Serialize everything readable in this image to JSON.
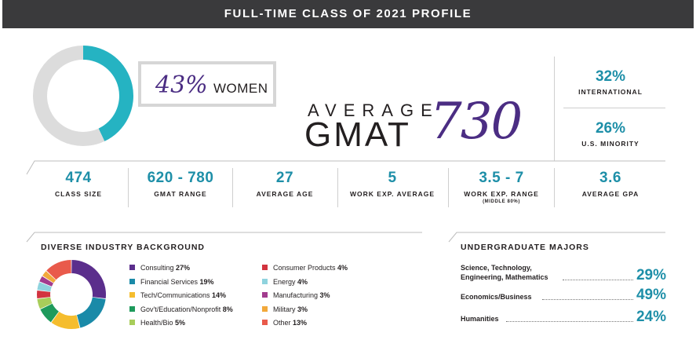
{
  "banner": {
    "title": "FULL-TIME CLASS OF 2021 PROFILE"
  },
  "women": {
    "percent": "43%",
    "label": "WOMEN",
    "value": 43,
    "color_fill": "#25b3c2",
    "color_rest": "#dcdcdc"
  },
  "gmat": {
    "label_top": "AVERAGE",
    "label_main": "GMAT",
    "value": "730"
  },
  "right_stats": [
    {
      "value": "32%",
      "label": "INTERNATIONAL"
    },
    {
      "value": "26%",
      "label": "U.S. MINORITY"
    }
  ],
  "stats": [
    {
      "value": "474",
      "label": "CLASS SIZE",
      "sub": ""
    },
    {
      "value": "620 - 780",
      "label": "GMAT RANGE",
      "sub": ""
    },
    {
      "value": "27",
      "label": "AVERAGE AGE",
      "sub": ""
    },
    {
      "value": "5",
      "label": "WORK EXP. AVERAGE",
      "sub": ""
    },
    {
      "value": "3.5 - 7",
      "label": "WORK EXP. RANGE",
      "sub": "(MIDDLE 80%)"
    },
    {
      "value": "3.6",
      "label": "AVERAGE GPA",
      "sub": ""
    }
  ],
  "industry": {
    "title": "DIVERSE INDUSTRY BACKGROUND"
  },
  "majors": {
    "title": "UNDERGRADUATE MAJORS",
    "items": [
      {
        "name_line1": "Science, Technology,",
        "name_line2": "Engineering, Mathematics",
        "percent": "29%"
      },
      {
        "name_line1": "",
        "name_line2": "Economics/Business",
        "percent": "49%"
      },
      {
        "name_line1": "",
        "name_line2": "Humanities",
        "percent": "24%"
      }
    ]
  },
  "chart_data": [
    {
      "type": "pie",
      "categories": [
        "WOMEN",
        ""
      ],
      "values": [
        43,
        57
      ],
      "colors": [
        "#25b3c2",
        "#dcdcdc"
      ],
      "title": ""
    },
    {
      "type": "pie",
      "title": "DIVERSE INDUSTRY BACKGROUND",
      "legend_placement": "right",
      "categories": [
        "Consulting",
        "Financial Services",
        "Tech/Communications",
        "Gov't/Education/Nonprofit",
        "Health/Bio",
        "Consumer Products",
        "Energy",
        "Manufacturing",
        "Military",
        "Other"
      ],
      "values": [
        27,
        19,
        14,
        8,
        5,
        4,
        4,
        3,
        3,
        13
      ],
      "labels": [
        "27%",
        "19%",
        "14%",
        "8%",
        "5%",
        "4%",
        "4%",
        "3%",
        "3%",
        "13%"
      ],
      "colors": [
        "#5b2e8c",
        "#1a8aa8",
        "#f5bd2e",
        "#1e9a5c",
        "#a8cd5a",
        "#d2333f",
        "#8fd3de",
        "#a23c8e",
        "#f2a93b",
        "#e95a4b"
      ]
    }
  ]
}
